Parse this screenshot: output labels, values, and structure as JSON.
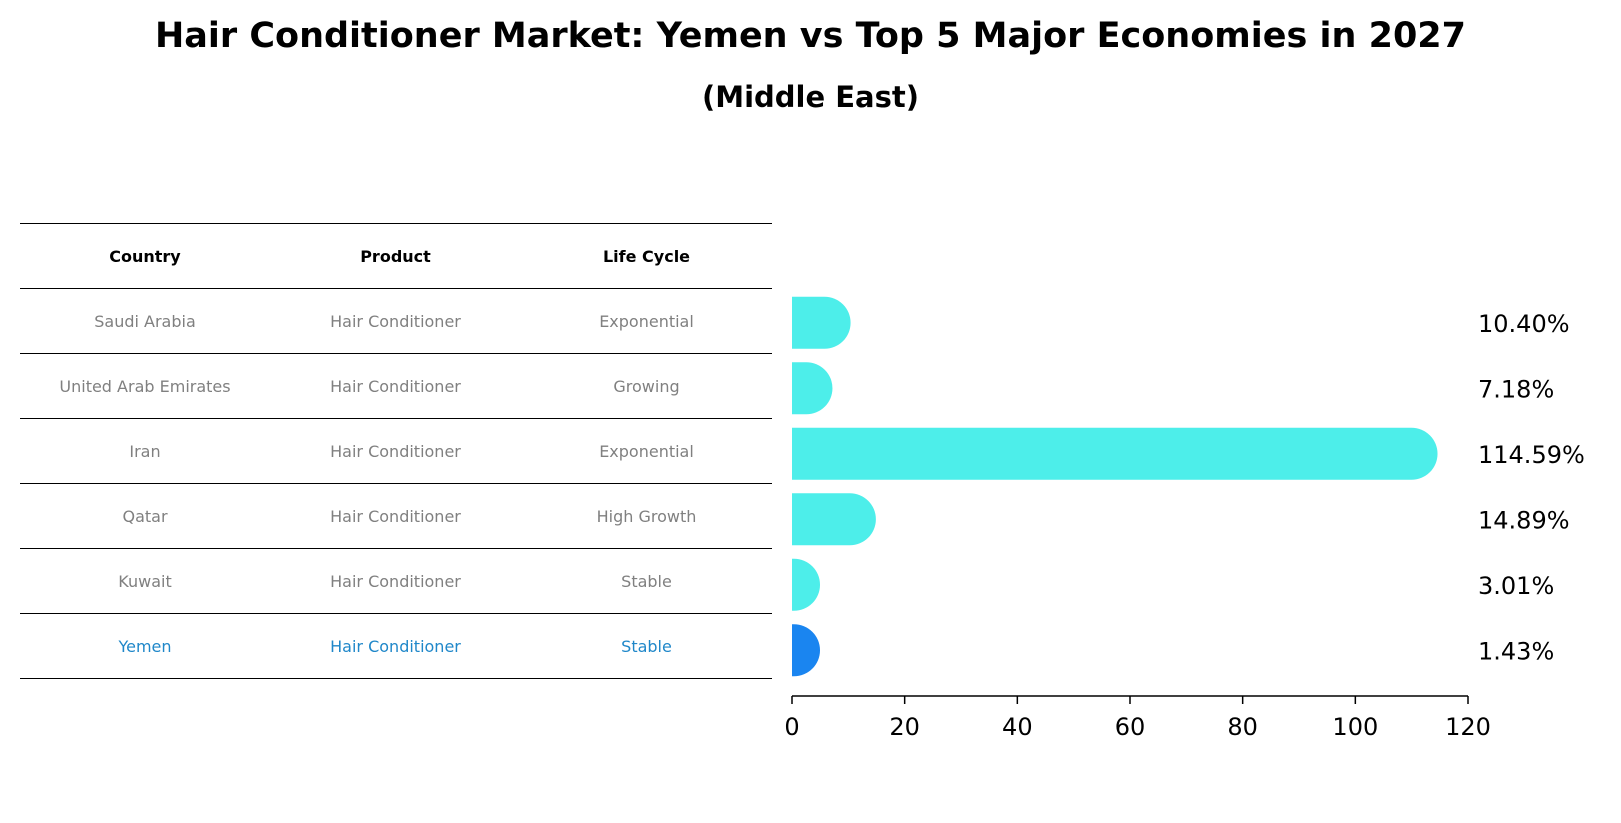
{
  "header": {
    "title": "Hair Conditioner Market: Yemen vs Top 5 Major Economies in 2027",
    "subtitle": "(Middle East)"
  },
  "table": {
    "columns": [
      "Country",
      "Product",
      "Life Cycle"
    ],
    "rows": [
      {
        "country": "Saudi Arabia",
        "product": "Hair Conditioner",
        "life_cycle": "Exponential"
      },
      {
        "country": "United Arab Emirates",
        "product": "Hair Conditioner",
        "life_cycle": "Growing"
      },
      {
        "country": "Iran",
        "product": "Hair Conditioner",
        "life_cycle": "Exponential"
      },
      {
        "country": "Qatar",
        "product": "Hair Conditioner",
        "life_cycle": "High Growth"
      },
      {
        "country": "Kuwait",
        "product": "Hair Conditioner",
        "life_cycle": "Stable"
      },
      {
        "country": "Yemen",
        "product": "Hair Conditioner",
        "life_cycle": "Stable"
      }
    ],
    "highlight_row": 5
  },
  "chart_data": {
    "type": "bar",
    "orientation": "horizontal",
    "categories": [
      "Saudi Arabia",
      "United Arab Emirates",
      "Iran",
      "Qatar",
      "Kuwait",
      "Yemen"
    ],
    "values": [
      10.4,
      7.18,
      114.59,
      14.89,
      3.01,
      1.43
    ],
    "value_labels": [
      "10.40%",
      "7.18%",
      "114.59%",
      "14.89%",
      "3.01%",
      "1.43%"
    ],
    "xlim": [
      0,
      120
    ],
    "xticks": [
      0,
      20,
      40,
      60,
      80,
      100,
      120
    ],
    "grid": false,
    "highlight_index": 5,
    "colors": {
      "default": "#4deeea",
      "highlight": "#1a85f0",
      "highlight_text": "#1f87c9",
      "muted_text": "#808080"
    }
  }
}
